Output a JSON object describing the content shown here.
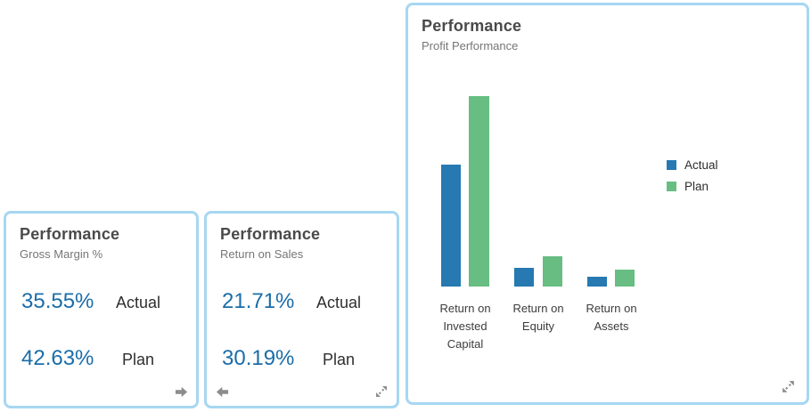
{
  "tiles": {
    "gross_margin": {
      "title": "Performance",
      "subtitle": "Gross Margin %",
      "rows": [
        {
          "value": "35.55%",
          "label": "Actual"
        },
        {
          "value": "42.63%",
          "label": "Plan"
        }
      ]
    },
    "return_on_sales": {
      "title": "Performance",
      "subtitle": "Return on Sales",
      "rows": [
        {
          "value": "21.71%",
          "label": "Actual"
        },
        {
          "value": "30.19%",
          "label": "Plan"
        }
      ]
    },
    "profit_performance": {
      "title": "Performance",
      "subtitle": "Profit Performance"
    }
  },
  "chart_data": {
    "type": "bar",
    "title": "Profit Performance",
    "categories": [
      "Return on Invested Capital",
      "Return on Equity",
      "Return on Assets"
    ],
    "xlabels_lines": [
      [
        "Return on",
        "Invested",
        "Capital"
      ],
      [
        "Return on",
        "Equity"
      ],
      [
        "Return on",
        "Assets"
      ]
    ],
    "series": [
      {
        "name": "Actual",
        "color": "#2679b1",
        "values": [
          64,
          10,
          5
        ]
      },
      {
        "name": "Plan",
        "color": "#68bd82",
        "values": [
          100,
          16,
          9
        ]
      }
    ],
    "xlabel": "",
    "ylabel": "",
    "ylim": [
      0,
      100
    ],
    "grid": false,
    "axis_shown": false,
    "value_labels_shown": false,
    "legend_position": "right"
  },
  "icons": {
    "tile1_footer": "right-arrow",
    "tile2_footer_left": "left-arrow",
    "tile2_footer_right": "resize-diagonal",
    "tile3_footer_right": "resize-diagonal"
  },
  "colors": {
    "tile_border": "#a7d7f1",
    "kpi_value": "#1a6da9",
    "title_text": "#4a4a4a",
    "subtitle_text": "#767676",
    "icon_gray": "#8c8c8c",
    "actual_bar": "#2679b1",
    "plan_bar": "#68bd82"
  }
}
